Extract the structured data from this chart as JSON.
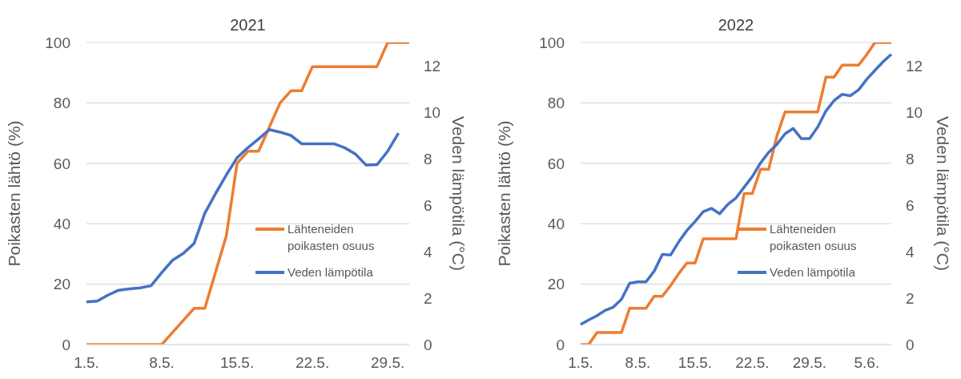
{
  "chart_data": [
    {
      "type": "line",
      "title": "2021",
      "ylabel": "Poikasten lähtö (%)",
      "y2label": "Veden lämpötila (°C)",
      "categories": [
        "1.5.",
        null,
        null,
        null,
        null,
        null,
        null,
        "8.5.",
        null,
        null,
        null,
        null,
        null,
        null,
        "15.5.",
        null,
        null,
        null,
        null,
        null,
        null,
        "22.5.",
        null,
        null,
        null,
        null,
        null,
        null,
        "29.5.",
        null,
        null
      ],
      "series": [
        {
          "name": "Lähteneiden poikasten osuus",
          "color": "#ed7d31",
          "values": [
            0,
            0,
            0,
            0,
            0,
            0,
            0,
            0,
            4,
            8,
            12,
            12,
            24,
            36,
            60,
            64,
            64,
            72,
            80,
            84,
            84,
            92,
            92,
            92,
            92,
            92,
            92,
            92,
            100,
            100,
            100
          ]
        },
        {
          "name": "Veden lämpötila",
          "color": "#4472c4",
          "axis": "y2",
          "values": [
            1.84,
            1.87,
            2.13,
            2.34,
            2.4,
            2.44,
            2.53,
            3.1,
            3.63,
            3.92,
            4.35,
            5.65,
            6.5,
            7.3,
            8.04,
            8.47,
            8.85,
            9.25,
            9.14,
            9.0,
            8.64,
            8.64,
            8.64,
            8.64,
            8.47,
            8.2,
            7.72,
            7.74,
            8.32,
            9.1,
            null
          ]
        }
      ],
      "ylim": [
        0,
        100
      ],
      "yticks": [
        0,
        20,
        40,
        60,
        80,
        100
      ],
      "y2lim": [
        0,
        13
      ],
      "y2ticks": [
        0,
        2,
        4,
        6,
        8,
        10,
        12
      ],
      "grid": "y",
      "legend": "bottom right"
    },
    {
      "type": "line",
      "title": "2022",
      "ylabel": "Poikasten lähtö (%)",
      "y2label": "Veden lämpötila (°C)",
      "categories": [
        "1.5.",
        null,
        null,
        null,
        null,
        null,
        null,
        "8.5.",
        null,
        null,
        null,
        null,
        null,
        null,
        "15.5.",
        null,
        null,
        null,
        null,
        null,
        null,
        "22.5.",
        null,
        null,
        null,
        null,
        null,
        null,
        "29.5.",
        null,
        null,
        null,
        null,
        null,
        null,
        "5.6.",
        null,
        null,
        null
      ],
      "series": [
        {
          "name": "Lähteneiden poikasten osuus",
          "color": "#ed7d31",
          "values": [
            0,
            0,
            4,
            4,
            4,
            4,
            12,
            12,
            12,
            16,
            16,
            19.5,
            23.5,
            27,
            27,
            35,
            35,
            35,
            35,
            35,
            50,
            50,
            58,
            58,
            69,
            77,
            77,
            77,
            77,
            77,
            88.5,
            88.5,
            92.5,
            92.5,
            92.5,
            96,
            100,
            100,
            100
          ]
        },
        {
          "name": "Veden lämpötila",
          "color": "#4472c4",
          "axis": "y2",
          "values": [
            0.86,
            1.06,
            1.24,
            1.47,
            1.61,
            1.95,
            2.64,
            2.7,
            2.7,
            3.16,
            3.88,
            3.85,
            4.42,
            4.91,
            5.3,
            5.72,
            5.86,
            5.63,
            6.03,
            6.31,
            6.77,
            7.23,
            7.81,
            8.27,
            8.61,
            9.07,
            9.3,
            8.86,
            8.86,
            9.36,
            10.05,
            10.5,
            10.77,
            10.71,
            10.96,
            11.42,
            11.8,
            12.17,
            12.49
          ]
        }
      ],
      "ylim": [
        0,
        100
      ],
      "yticks": [
        0,
        20,
        40,
        60,
        80,
        100
      ],
      "y2lim": [
        0,
        13
      ],
      "y2ticks": [
        0,
        2,
        4,
        6,
        8,
        10,
        12
      ],
      "grid": "y",
      "legend": "bottom right"
    }
  ]
}
